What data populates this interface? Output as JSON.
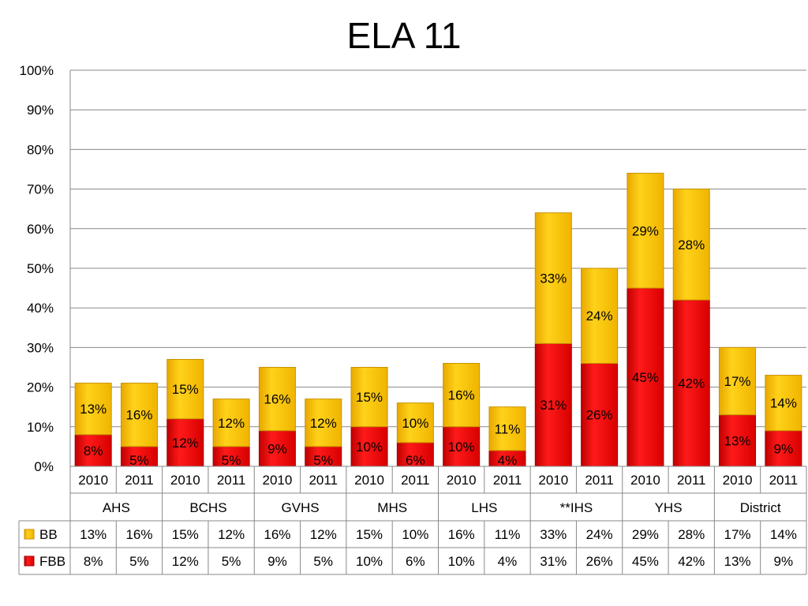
{
  "chart_data": {
    "type": "bar",
    "stacked": true,
    "title": "ELA 11",
    "ylim": [
      0,
      100
    ],
    "yticks": [
      "0%",
      "10%",
      "20%",
      "30%",
      "40%",
      "50%",
      "60%",
      "70%",
      "80%",
      "90%",
      "100%"
    ],
    "grid": true,
    "groups": [
      "AHS",
      "BCHS",
      "GVHS",
      "MHS",
      "LHS",
      "**IHS",
      "YHS",
      "District"
    ],
    "years": [
      "2010",
      "2011"
    ],
    "categories": [
      "2010",
      "2011",
      "2010",
      "2011",
      "2010",
      "2011",
      "2010",
      "2011",
      "2010",
      "2011",
      "2010",
      "2011",
      "2010",
      "2011",
      "2010",
      "2011"
    ],
    "series": [
      {
        "name": "FBB",
        "color": "#ff0000",
        "values": [
          8,
          5,
          12,
          5,
          9,
          5,
          10,
          6,
          10,
          4,
          31,
          26,
          45,
          42,
          13,
          9
        ],
        "labels": [
          "8%",
          "5%",
          "12%",
          "5%",
          "9%",
          "5%",
          "10%",
          "6%",
          "10%",
          "4%",
          "31%",
          "26%",
          "45%",
          "42%",
          "13%",
          "9%"
        ]
      },
      {
        "name": "BB",
        "color": "#ffc000",
        "values": [
          13,
          16,
          15,
          12,
          16,
          12,
          15,
          10,
          16,
          11,
          33,
          24,
          29,
          28,
          17,
          14
        ],
        "labels": [
          "13%",
          "16%",
          "15%",
          "12%",
          "16%",
          "12%",
          "15%",
          "10%",
          "16%",
          "11%",
          "33%",
          "24%",
          "29%",
          "28%",
          "17%",
          "14%"
        ]
      }
    ],
    "legend": "data-table"
  }
}
